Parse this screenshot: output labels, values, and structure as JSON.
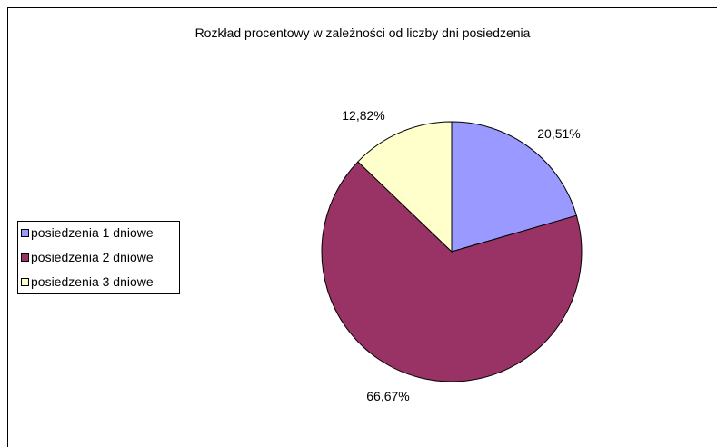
{
  "chart_data": {
    "type": "pie",
    "title": "Rozkład procentowy w zależności od liczby dni posiedzenia",
    "categories": [
      "posiedzenia 1 dniowe",
      "posiedzenia 2 dniowe",
      "posiedzenia 3 dniowe"
    ],
    "values": [
      20.51,
      66.67,
      12.82
    ],
    "labels": [
      "20,51%",
      "66,67%",
      "12,82%"
    ],
    "colors": [
      "#9999FF",
      "#993366",
      "#FFFFCC"
    ],
    "legend_position": "left",
    "start": "12 o'clock",
    "direction": "clockwise"
  }
}
